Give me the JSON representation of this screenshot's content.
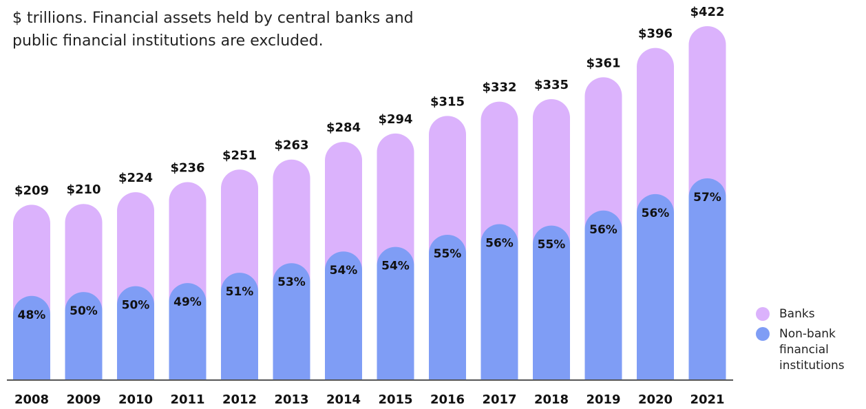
{
  "chart_data": {
    "type": "bar",
    "subtitle": "$ trillions. Financial assets held by central banks and public financial institutions are excluded.",
    "categories": [
      "2008",
      "2009",
      "2010",
      "2011",
      "2012",
      "2013",
      "2014",
      "2015",
      "2016",
      "2017",
      "2018",
      "2019",
      "2020",
      "2021"
    ],
    "totals": [
      209,
      210,
      224,
      236,
      251,
      263,
      284,
      294,
      315,
      332,
      335,
      361,
      396,
      422
    ],
    "total_labels": [
      "$209",
      "$210",
      "$224",
      "$236",
      "$251",
      "$263",
      "$284",
      "$294",
      "$315",
      "$332",
      "$335",
      "$361",
      "$396",
      "$422"
    ],
    "series": [
      {
        "name": "Banks",
        "color": "#dbb2fc"
      },
      {
        "name": "Non-bank financial institutions",
        "color": "#7f9df5",
        "values": [
          48,
          50,
          50,
          49,
          51,
          53,
          54,
          54,
          55,
          56,
          55,
          56,
          56,
          57
        ],
        "value_labels": [
          "48%",
          "50%",
          "50%",
          "49%",
          "51%",
          "53%",
          "54%",
          "54%",
          "55%",
          "56%",
          "55%",
          "56%",
          "56%",
          "57%"
        ]
      }
    ],
    "ylim": [
      0,
      422
    ]
  }
}
